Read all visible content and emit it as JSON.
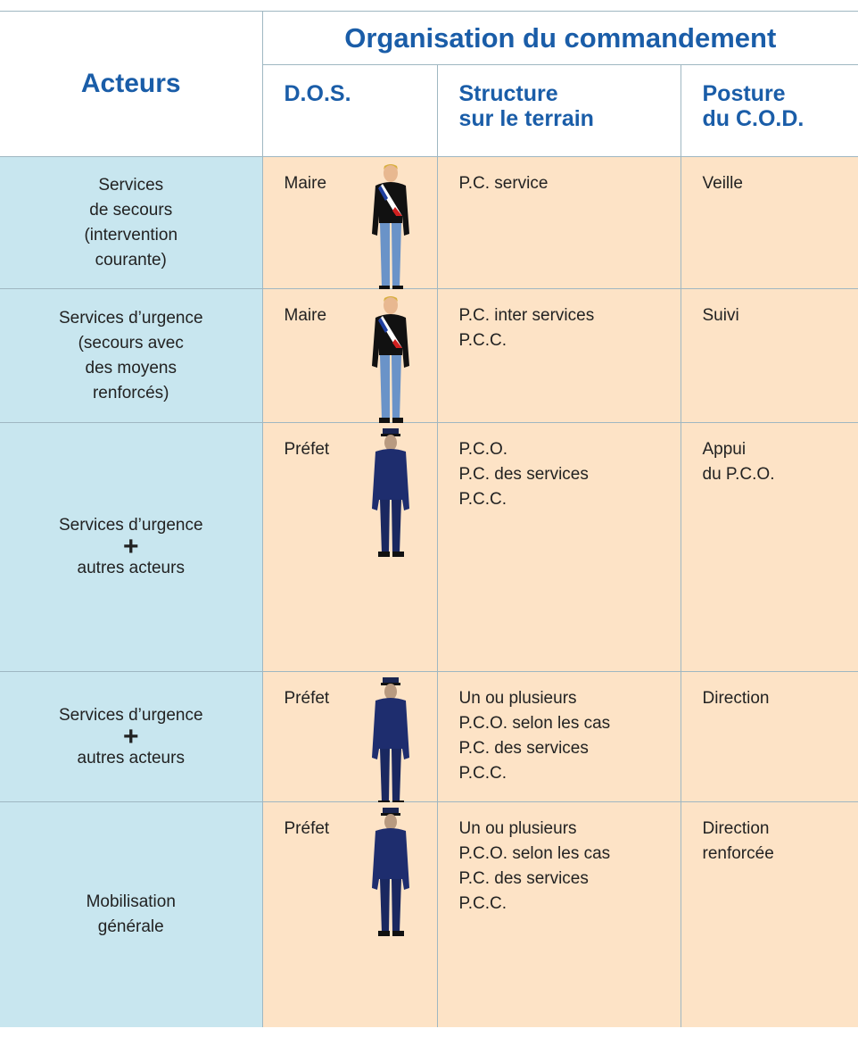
{
  "header": {
    "acteurs": "Acteurs",
    "group": "Organisation du commandement",
    "columns": [
      [
        "D.O.S."
      ],
      [
        "Structure",
        "sur le terrain"
      ],
      [
        "Posture",
        "du C.O.D."
      ]
    ]
  },
  "rows": [
    {
      "acteurs": [
        "Services",
        "de secours",
        "(intervention",
        "courante)"
      ],
      "dos": "Maire",
      "structure": [
        "P.C. service"
      ],
      "posture": [
        "Veille"
      ]
    },
    {
      "acteurs": [
        "Services d’urgence",
        "(secours avec",
        "des moyens",
        "renforcés)"
      ],
      "dos": "Maire",
      "structure": [
        "P.C. inter services",
        "P.C.C."
      ],
      "posture": [
        "Suivi"
      ]
    },
    {
      "acteurs": [
        "Services d’urgence",
        "+",
        "autres acteurs"
      ],
      "dos": "Préfet",
      "structure": [
        "P.C.O.",
        "P.C. des services",
        "P.C.C."
      ],
      "posture": [
        "Appui",
        "du P.C.O."
      ]
    },
    {
      "acteurs": [
        "Services d’urgence",
        "+",
        "autres acteurs"
      ],
      "dos": "Préfet",
      "structure": [
        "Un ou plusieurs",
        "P.C.O. selon les cas",
        "P.C. des services",
        "P.C.C."
      ],
      "posture": [
        "Direction"
      ]
    },
    {
      "acteurs": [
        "Mobilisation",
        "générale"
      ],
      "dos": "Préfet",
      "structure": [
        "Un ou plusieurs",
        "P.C.O. selon les cas",
        "P.C. des services",
        "P.C.C."
      ],
      "posture": [
        "Direction",
        "renforcée"
      ]
    }
  ]
}
